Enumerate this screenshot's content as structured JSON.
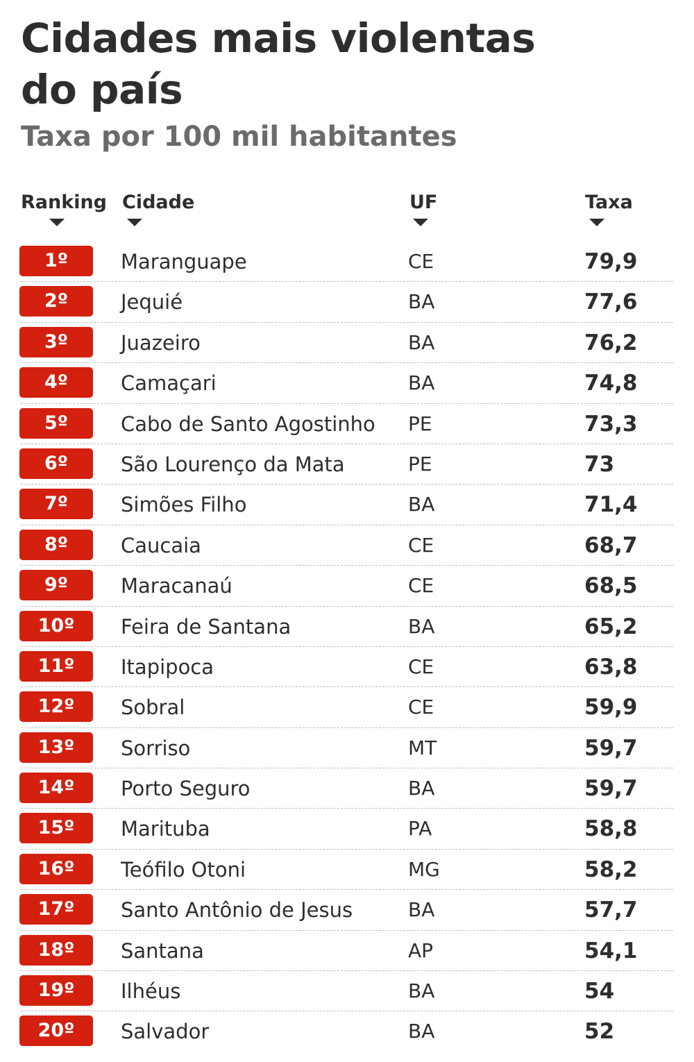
{
  "title_line1": "Cidades mais violentas",
  "title_line2": "do país",
  "subtitle": "Taxa por 100 mil habitantes",
  "colors": {
    "badge": "#d3200f",
    "text": "#2e2e2e",
    "subtitle": "#6b6b6b"
  },
  "chart_data": {
    "type": "table",
    "columns": [
      "Ranking",
      "Cidade",
      "UF",
      "Taxa"
    ],
    "rows": [
      {
        "rank": "1º",
        "city": "Maranguape",
        "uf": "CE",
        "rate": "79,9"
      },
      {
        "rank": "2º",
        "city": "Jequié",
        "uf": "BA",
        "rate": "77,6"
      },
      {
        "rank": "3º",
        "city": "Juazeiro",
        "uf": "BA",
        "rate": "76,2"
      },
      {
        "rank": "4º",
        "city": "Camaçari",
        "uf": "BA",
        "rate": "74,8"
      },
      {
        "rank": "5º",
        "city": "Cabo de Santo Agostinho",
        "uf": "PE",
        "rate": "73,3"
      },
      {
        "rank": "6º",
        "city": "São Lourenço da Mata",
        "uf": "PE",
        "rate": "73"
      },
      {
        "rank": "7º",
        "city": "Simões Filho",
        "uf": "BA",
        "rate": "71,4"
      },
      {
        "rank": "8º",
        "city": "Caucaia",
        "uf": "CE",
        "rate": "68,7"
      },
      {
        "rank": "9º",
        "city": "Maracanaú",
        "uf": "CE",
        "rate": "68,5"
      },
      {
        "rank": "10º",
        "city": "Feira de Santana",
        "uf": "BA",
        "rate": "65,2"
      },
      {
        "rank": "11º",
        "city": "Itapipoca",
        "uf": "CE",
        "rate": "63,8"
      },
      {
        "rank": "12º",
        "city": "Sobral",
        "uf": "CE",
        "rate": "59,9"
      },
      {
        "rank": "13º",
        "city": "Sorriso",
        "uf": "MT",
        "rate": "59,7"
      },
      {
        "rank": "14º",
        "city": "Porto Seguro",
        "uf": "BA",
        "rate": "59,7"
      },
      {
        "rank": "15º",
        "city": "Marituba",
        "uf": "PA",
        "rate": "58,8"
      },
      {
        "rank": "16º",
        "city": "Teófilo Otoni",
        "uf": "MG",
        "rate": "58,2"
      },
      {
        "rank": "17º",
        "city": "Santo Antônio de Jesus",
        "uf": "BA",
        "rate": "57,7"
      },
      {
        "rank": "18º",
        "city": "Santana",
        "uf": "AP",
        "rate": "54,1"
      },
      {
        "rank": "19º",
        "city": "Ilhéus",
        "uf": "BA",
        "rate": "54"
      },
      {
        "rank": "20º",
        "city": "Salvador",
        "uf": "BA",
        "rate": "52"
      }
    ]
  }
}
